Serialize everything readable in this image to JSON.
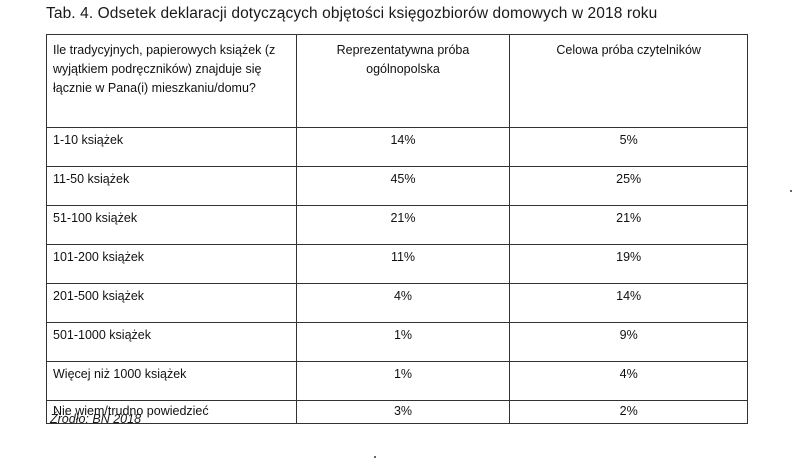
{
  "title": "Tab. 4.  Odsetek deklaracji dotyczących objętości księgozbiorów domowych w 2018 roku",
  "table": {
    "headers": [
      "Ile tradycyjnych, papierowych książek (z wyjątkiem podręczników) znajduje się łącznie w Pana(i) mieszkaniu/domu?",
      "Reprezentatywna próba ogólnopolska",
      "Celowa próba czytelników"
    ],
    "rows": [
      {
        "label": "1-10 książek",
        "rep": "14%",
        "cel": "5%"
      },
      {
        "label": "11-50 książek",
        "rep": "45%",
        "cel": "25%"
      },
      {
        "label": "51-100 książek",
        "rep": "21%",
        "cel": "21%"
      },
      {
        "label": "101-200 książek",
        "rep": "11%",
        "cel": "19%"
      },
      {
        "label": "201-500 książek",
        "rep": "4%",
        "cel": "14%"
      },
      {
        "label": "501-1000 książek",
        "rep": "1%",
        "cel": "9%"
      },
      {
        "label": "Więcej niż 1000 książek",
        "rep": "1%",
        "cel": "4%"
      },
      {
        "label": "Nie wiem/trudno powiedzieć",
        "rep": "3%",
        "cel": "2%"
      }
    ]
  },
  "source": "Źródło: BN 2018"
}
